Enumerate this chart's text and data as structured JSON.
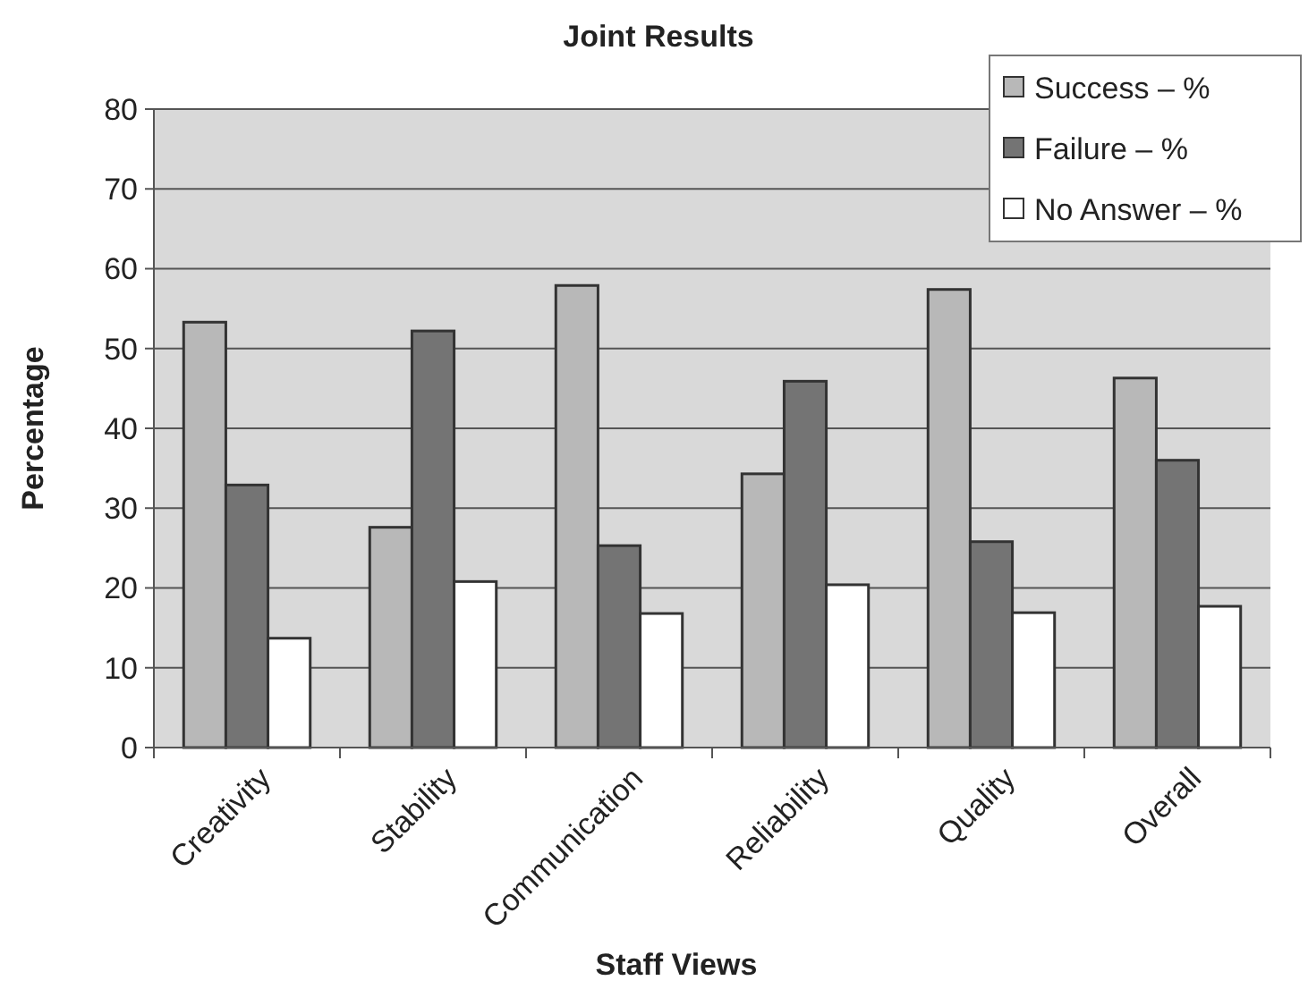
{
  "chart_data": {
    "type": "bar",
    "title": "Joint Results",
    "xlabel": "Staff Views",
    "ylabel": "Percentage",
    "categories": [
      "Creativity",
      "Stability",
      "Communication",
      "Reliability",
      "Quality",
      "Overall"
    ],
    "series": [
      {
        "name": "Success – %",
        "color": "#b8b8b8",
        "values": [
          53.3,
          27.6,
          57.9,
          34.3,
          57.4,
          46.3
        ]
      },
      {
        "name": "Failure – %",
        "color": "#747474",
        "values": [
          32.9,
          52.2,
          25.3,
          45.9,
          25.8,
          36.0
        ]
      },
      {
        "name": "No Answer – %",
        "color": "#ffffff",
        "values": [
          13.7,
          20.8,
          16.8,
          20.4,
          16.9,
          17.7
        ]
      }
    ],
    "ylim": [
      0,
      80
    ],
    "yticks": [
      0,
      10,
      20,
      30,
      40,
      50,
      60,
      70,
      80
    ],
    "grid": "y",
    "legend": "top right"
  }
}
